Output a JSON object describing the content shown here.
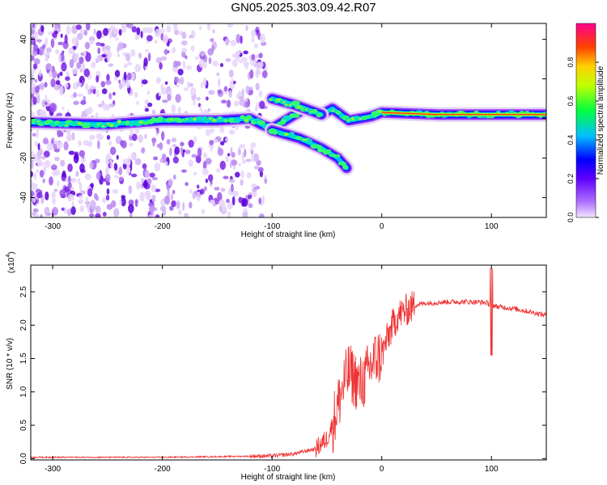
{
  "title": "GN05.2025.303.09.42.R07",
  "chart_data": [
    {
      "type": "heatmap",
      "xlabel": "Height of straight line (km)",
      "ylabel": "Frequency (Hz)",
      "xlim": [
        -320,
        150
      ],
      "ylim": [
        -50,
        48
      ],
      "xticks": [
        -300,
        -200,
        -100,
        0,
        100
      ],
      "yticks": [
        -40,
        -20,
        0,
        20,
        40
      ],
      "colorbar": {
        "label": "Normalized spectral amplitude",
        "range": [
          0.0,
          1.0
        ],
        "ticks": [
          0.0,
          0.2,
          0.4,
          0.6,
          0.8
        ],
        "colors": [
          "#e8d8f8",
          "#8a00ff",
          "#0000ff",
          "#00c8ff",
          "#00ff00",
          "#ffff00",
          "#ff8000",
          "#ff0000",
          "#ff0080"
        ]
      },
      "main_band": {
        "name": "dominant frequency track",
        "points": [
          [
            -320,
            -2
          ],
          [
            -250,
            -3
          ],
          [
            -200,
            -1
          ],
          [
            -150,
            -1
          ],
          [
            -120,
            0
          ],
          [
            -110,
            -3
          ],
          [
            -100,
            -5
          ],
          [
            -70,
            5
          ],
          [
            -55,
            2
          ],
          [
            -45,
            5
          ],
          [
            -30,
            -1
          ],
          [
            -10,
            1
          ],
          [
            0,
            3
          ],
          [
            50,
            2
          ],
          [
            100,
            2
          ],
          [
            150,
            2
          ]
        ]
      },
      "upper_branch": {
        "points": [
          [
            -100,
            10
          ],
          [
            -80,
            7
          ],
          [
            -65,
            4
          ],
          [
            -55,
            2
          ]
        ]
      },
      "lower_branch": {
        "points": [
          [
            -100,
            -6
          ],
          [
            -75,
            -10
          ],
          [
            -55,
            -15
          ],
          [
            -40,
            -20
          ],
          [
            -32,
            -25
          ]
        ]
      }
    },
    {
      "type": "line",
      "xlabel": "Height of straight line (km)",
      "ylabel": "SNR (10 * v/v)",
      "yscale_label": "(x10",
      "yscale_exp": "4",
      "xlim": [
        -320,
        150
      ],
      "ylim": [
        -0.02,
        2.9
      ],
      "xticks": [
        -300,
        -200,
        -100,
        0,
        100
      ],
      "yticks": [
        0.0,
        0.5,
        1.0,
        1.5,
        2.0,
        2.5
      ],
      "color": "#ee3333",
      "series": [
        {
          "name": "SNR",
          "x": [
            -320,
            -250,
            -200,
            -150,
            -100,
            -80,
            -60,
            -50,
            -45,
            -40,
            -35,
            -30,
            -25,
            -20,
            -15,
            -10,
            -5,
            0,
            5,
            10,
            15,
            20,
            30,
            40,
            60,
            80,
            95,
            100,
            105,
            120,
            150
          ],
          "y": [
            0.02,
            0.02,
            0.02,
            0.03,
            0.04,
            0.07,
            0.15,
            0.3,
            0.5,
            0.8,
            1.1,
            1.3,
            1.2,
            1.1,
            1.2,
            1.4,
            1.5,
            1.55,
            1.8,
            2.0,
            2.15,
            2.2,
            2.3,
            2.33,
            2.35,
            2.35,
            2.34,
            2.3,
            2.28,
            2.25,
            2.15
          ]
        }
      ]
    }
  ]
}
